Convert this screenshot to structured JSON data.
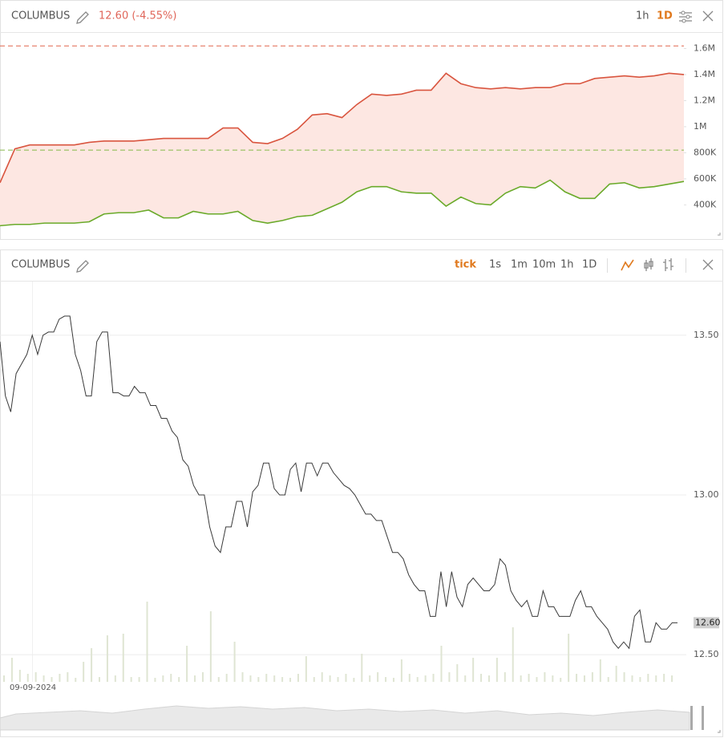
{
  "header_top": {
    "symbol": "COLUMBUS",
    "quote": "12.60 (-4.55%)",
    "intervals": [
      "1h",
      "1D"
    ],
    "active": 1
  },
  "header_bottom": {
    "symbol": "COLUMBUS",
    "intervals": [
      "tick",
      "1s",
      "1m",
      "10m",
      "1h",
      "1D"
    ],
    "active": 0
  },
  "chart_data": [
    {
      "type": "range",
      "fill": "#fde7e2",
      "series": [
        {
          "color": "#d9553f",
          "values": [
            570000,
            830000,
            860000,
            860000,
            860000,
            860000,
            880000,
            890000,
            890000,
            890000,
            900000,
            910000,
            910000,
            910000,
            910000,
            990000,
            990000,
            880000,
            870000,
            910000,
            980000,
            1090000,
            1100000,
            1070000,
            1170000,
            1250000,
            1240000,
            1250000,
            1280000,
            1280000,
            1410000,
            1330000,
            1300000,
            1290000,
            1300000,
            1290000,
            1300000,
            1300000,
            1330000,
            1330000,
            1370000,
            1380000,
            1390000,
            1380000,
            1390000,
            1410000,
            1400000
          ]
        },
        {
          "color": "#6aaa2a",
          "values": [
            240000,
            250000,
            250000,
            260000,
            260000,
            260000,
            270000,
            330000,
            340000,
            340000,
            360000,
            300000,
            300000,
            350000,
            330000,
            330000,
            350000,
            280000,
            260000,
            280000,
            310000,
            320000,
            370000,
            420000,
            500000,
            540000,
            540000,
            500000,
            490000,
            490000,
            390000,
            460000,
            410000,
            400000,
            490000,
            540000,
            530000,
            590000,
            500000,
            450000,
            450000,
            560000,
            570000,
            530000,
            540000,
            560000,
            580000
          ]
        }
      ],
      "hlines": [
        {
          "value": 1620000,
          "color": "#e0664f"
        },
        {
          "value": 820000,
          "color": "#86b84a"
        }
      ],
      "ylim": [
        230000,
        1720000
      ],
      "yticks": [
        {
          "value": 400000,
          "label": "400K"
        },
        {
          "value": 600000,
          "label": "600K"
        },
        {
          "value": 800000,
          "label": "800K"
        },
        {
          "value": 1000000,
          "label": "1M"
        },
        {
          "value": 1200000,
          "label": "1.2M"
        },
        {
          "value": 1400000,
          "label": "1.4M"
        },
        {
          "value": 1600000,
          "label": "1.6M"
        }
      ],
      "grid": false
    },
    {
      "type": "line",
      "color": "#3a3a3a",
      "start_date": "09-09-2024",
      "values": [
        13.48,
        13.31,
        13.26,
        13.38,
        13.41,
        13.44,
        13.5,
        13.44,
        13.5,
        13.51,
        13.51,
        13.55,
        13.56,
        13.56,
        13.44,
        13.39,
        13.31,
        13.31,
        13.48,
        13.51,
        13.51,
        13.32,
        13.32,
        13.31,
        13.31,
        13.34,
        13.32,
        13.32,
        13.28,
        13.28,
        13.24,
        13.24,
        13.2,
        13.18,
        13.11,
        13.09,
        13.03,
        13.0,
        13.0,
        12.9,
        12.84,
        12.82,
        12.9,
        12.9,
        12.98,
        12.98,
        12.9,
        13.01,
        13.03,
        13.1,
        13.1,
        13.02,
        13.0,
        13.0,
        13.08,
        13.1,
        13.01,
        13.1,
        13.1,
        13.06,
        13.1,
        13.1,
        13.07,
        13.05,
        13.03,
        13.02,
        13.0,
        12.97,
        12.94,
        12.94,
        12.92,
        12.92,
        12.87,
        12.82,
        12.82,
        12.8,
        12.75,
        12.72,
        12.7,
        12.7,
        12.62,
        12.62,
        12.76,
        12.65,
        12.76,
        12.68,
        12.65,
        12.72,
        12.74,
        12.72,
        12.7,
        12.7,
        12.72,
        12.8,
        12.78,
        12.7,
        12.67,
        12.65,
        12.67,
        12.62,
        12.62,
        12.7,
        12.65,
        12.65,
        12.62,
        12.62,
        12.62,
        12.67,
        12.7,
        12.65,
        12.65,
        12.62,
        12.6,
        12.58,
        12.54,
        12.52,
        12.54,
        12.52,
        12.62,
        12.64,
        12.54,
        12.54,
        12.6,
        12.58,
        12.58,
        12.6,
        12.6
      ],
      "last_value": 12.6,
      "last_value_label": "12.60",
      "volume": {
        "color": "#dfe5d3",
        "values": [
          8,
          30,
          15,
          10,
          12,
          8,
          6,
          10,
          12,
          5,
          25,
          42,
          6,
          58,
          8,
          60,
          6,
          6,
          100,
          5,
          8,
          10,
          6,
          45,
          8,
          12,
          88,
          6,
          10,
          50,
          12,
          8,
          6,
          10,
          8,
          6,
          5,
          10,
          32,
          6,
          12,
          8,
          6,
          10,
          5,
          35,
          8,
          12,
          6,
          5,
          28,
          10,
          6,
          8,
          10,
          45,
          12,
          22,
          8,
          30,
          10,
          8,
          30,
          12,
          68,
          8,
          10,
          6,
          12,
          8,
          5,
          60,
          10,
          8,
          12,
          28,
          6,
          20,
          12,
          8,
          6,
          10,
          8,
          10,
          8
        ]
      },
      "ylim": [
        12.415,
        13.668
      ],
      "yticks": [
        {
          "value": 12.5,
          "label": "12.50"
        },
        {
          "value": 13,
          "label": "13.00"
        },
        {
          "value": 13.5,
          "label": "13.50"
        }
      ],
      "grid": true
    }
  ]
}
